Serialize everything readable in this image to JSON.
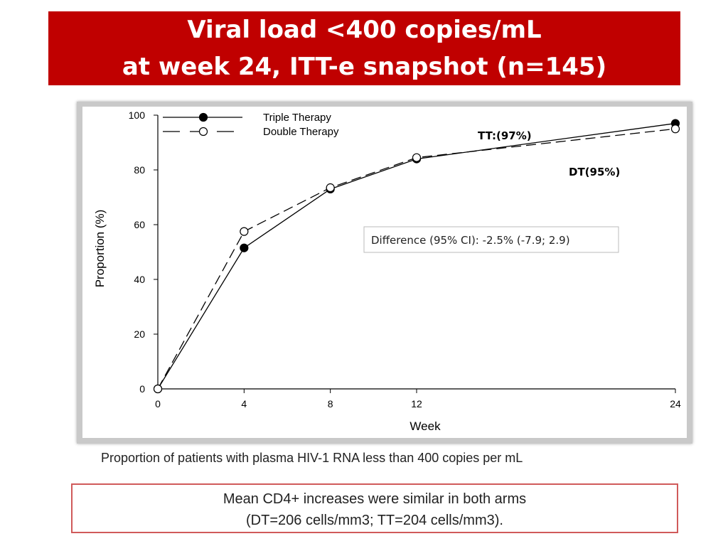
{
  "title": {
    "line1": "Viral load <400 copies/mL",
    "line2": "at  week 24, ITT-e  snapshot (n=145)"
  },
  "chart_data": {
    "type": "line",
    "xlabel": "Week",
    "ylabel": "Proportion (%)",
    "x_ticks": [
      0,
      4,
      8,
      12,
      24
    ],
    "y_ticks": [
      0,
      20,
      40,
      60,
      80,
      100
    ],
    "xlim": [
      0,
      24
    ],
    "ylim": [
      0,
      100
    ],
    "legend_position": "top-left",
    "grid": false,
    "series": [
      {
        "name": "Triple Therapy",
        "style": "solid",
        "marker": "filled-circle",
        "color": "#000000",
        "x": [
          0,
          4,
          8,
          12,
          24
        ],
        "y": [
          0,
          51.5,
          73,
          84,
          97
        ]
      },
      {
        "name": "Double Therapy",
        "style": "dashed",
        "marker": "open-circle",
        "color": "#000000",
        "x": [
          0,
          4,
          8,
          12,
          24
        ],
        "y": [
          0,
          57.5,
          73.5,
          84.5,
          95
        ]
      }
    ],
    "annotations": {
      "tt_label": "TT:(97%)",
      "dt_label": "DT(95%)",
      "difference": "Difference (95% CI): -2.5% (-7.9; 2.9)"
    }
  },
  "caption": "Proportion of patients with plasma HIV-1 RNA less than 400 copies per mL",
  "cd4": {
    "line1": "Mean CD4+ increases were similar in both arms",
    "line2": "(DT=206 cells/mm3; TT=204 cells/mm3)."
  },
  "colors": {
    "banner": "#c00000",
    "cd4_border": "#d05a5a",
    "chart_frame": "#c9c9c9"
  }
}
